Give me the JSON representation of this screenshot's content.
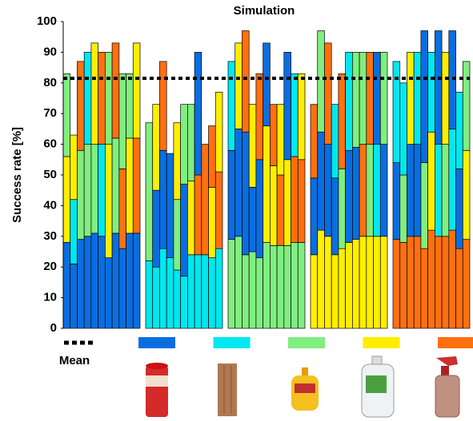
{
  "chart_data": {
    "type": "bar",
    "title": "Simulation",
    "y_label": "Success rate [%]",
    "ylim": [
      0,
      100
    ],
    "yticks": [
      0,
      10,
      20,
      30,
      40,
      50,
      60,
      70,
      80,
      90,
      100
    ],
    "mean": 81.5,
    "mean_label": "Mean",
    "groups": [
      {
        "color": "#0a6ee0",
        "bars": [
          [
            {
              "value": 28,
              "color": "#0a6ee0"
            },
            {
              "value": 28,
              "color": "#ffee00"
            },
            {
              "value": 27,
              "color": "#80ee80"
            }
          ],
          [
            {
              "value": 21,
              "color": "#0a6ee0"
            },
            {
              "value": 21,
              "color": "#00e8f0"
            },
            {
              "value": 21,
              "color": "#ffee00"
            }
          ],
          [
            {
              "value": 29,
              "color": "#0a6ee0"
            },
            {
              "value": 29,
              "color": "#80ee80"
            },
            {
              "value": 29,
              "color": "#ff7010"
            }
          ],
          [
            {
              "value": 30,
              "color": "#0a6ee0"
            },
            {
              "value": 30,
              "color": "#80ee80"
            },
            {
              "value": 30,
              "color": "#00e8f0"
            }
          ],
          [
            {
              "value": 31,
              "color": "#0a6ee0"
            },
            {
              "value": 29,
              "color": "#80ee80"
            },
            {
              "value": 33,
              "color": "#ffee00"
            }
          ],
          [
            {
              "value": 30,
              "color": "#0a6ee0"
            },
            {
              "value": 30,
              "color": "#00e8f0"
            },
            {
              "value": 30,
              "color": "#ff7010"
            }
          ],
          [
            {
              "value": 23,
              "color": "#0a6ee0"
            },
            {
              "value": 37,
              "color": "#ffee00"
            },
            {
              "value": 30,
              "color": "#80ee80"
            }
          ],
          [
            {
              "value": 31,
              "color": "#0a6ee0"
            },
            {
              "value": 31,
              "color": "#80ee80"
            },
            {
              "value": 31,
              "color": "#ff7010"
            }
          ],
          [
            {
              "value": 26,
              "color": "#0a6ee0"
            },
            {
              "value": 26,
              "color": "#ff7010"
            },
            {
              "value": 31,
              "color": "#80ee80"
            }
          ],
          [
            {
              "value": 31,
              "color": "#0a6ee0"
            },
            {
              "value": 31,
              "color": "#ffee00"
            },
            {
              "value": 21,
              "color": "#80ee80"
            }
          ],
          [
            {
              "value": 31,
              "color": "#0a6ee0"
            },
            {
              "value": 31,
              "color": "#ff7010"
            },
            {
              "value": 31,
              "color": "#ffee00"
            }
          ]
        ]
      },
      {
        "color": "#00e8f0",
        "bars": [
          [
            {
              "value": 22,
              "color": "#00e8f0"
            },
            {
              "value": 45,
              "color": "#80ee80"
            }
          ],
          [
            {
              "value": 20,
              "color": "#00e8f0"
            },
            {
              "value": 25,
              "color": "#0a6ee0"
            },
            {
              "value": 28,
              "color": "#ffee00"
            }
          ],
          [
            {
              "value": 26,
              "color": "#00e8f0"
            },
            {
              "value": 32,
              "color": "#0a6ee0"
            },
            {
              "value": 29,
              "color": "#ff7010"
            }
          ],
          [
            {
              "value": 23,
              "color": "#00e8f0"
            },
            {
              "value": 34,
              "color": "#0a6ee0"
            }
          ],
          [
            {
              "value": 19,
              "color": "#00e8f0"
            },
            {
              "value": 23,
              "color": "#80ee80"
            },
            {
              "value": 25,
              "color": "#ffee00"
            }
          ],
          [
            {
              "value": 17,
              "color": "#00e8f0"
            },
            {
              "value": 30,
              "color": "#0a6ee0"
            },
            {
              "value": 26,
              "color": "#80ee80"
            }
          ],
          [
            {
              "value": 24,
              "color": "#00e8f0"
            },
            {
              "value": 24,
              "color": "#ffee00"
            },
            {
              "value": 25,
              "color": "#80ee80"
            }
          ],
          [
            {
              "value": 24,
              "color": "#00e8f0"
            },
            {
              "value": 26,
              "color": "#ff7010"
            },
            {
              "value": 40,
              "color": "#0a6ee0"
            }
          ],
          [
            {
              "value": 24,
              "color": "#00e8f0"
            },
            {
              "value": 36,
              "color": "#ff7010"
            }
          ],
          [
            {
              "value": 23,
              "color": "#00e8f0"
            },
            {
              "value": 23,
              "color": "#ffee00"
            },
            {
              "value": 20,
              "color": "#ff7010"
            }
          ],
          [
            {
              "value": 26,
              "color": "#00e8f0"
            },
            {
              "value": 25,
              "color": "#ff7010"
            },
            {
              "value": 26,
              "color": "#ffee00"
            }
          ]
        ]
      },
      {
        "color": "#80ee80",
        "bars": [
          [
            {
              "value": 29,
              "color": "#80ee80"
            },
            {
              "value": 29,
              "color": "#0a6ee0"
            },
            {
              "value": 29,
              "color": "#00e8f0"
            }
          ],
          [
            {
              "value": 30,
              "color": "#80ee80"
            },
            {
              "value": 35,
              "color": "#0a6ee0"
            },
            {
              "value": 28,
              "color": "#ffee00"
            }
          ],
          [
            {
              "value": 24,
              "color": "#80ee80"
            },
            {
              "value": 40,
              "color": "#0a6ee0"
            },
            {
              "value": 33,
              "color": "#ff7010"
            }
          ],
          [
            {
              "value": 25,
              "color": "#80ee80"
            },
            {
              "value": 21,
              "color": "#0a6ee0"
            },
            {
              "value": 27,
              "color": "#ffee00"
            }
          ],
          [
            {
              "value": 23,
              "color": "#80ee80"
            },
            {
              "value": 32,
              "color": "#0a6ee0"
            },
            {
              "value": 28,
              "color": "#ff7010"
            }
          ],
          [
            {
              "value": 28,
              "color": "#80ee80"
            },
            {
              "value": 38,
              "color": "#ffee00"
            },
            {
              "value": 27,
              "color": "#0a6ee0"
            }
          ],
          [
            {
              "value": 27,
              "color": "#80ee80"
            },
            {
              "value": 26,
              "color": "#ffee00"
            },
            {
              "value": 20,
              "color": "#ff7010"
            }
          ],
          [
            {
              "value": 27,
              "color": "#80ee80"
            },
            {
              "value": 23,
              "color": "#ff7010"
            },
            {
              "value": 23,
              "color": "#ffee00"
            }
          ],
          [
            {
              "value": 27,
              "color": "#80ee80"
            },
            {
              "value": 28,
              "color": "#ffee00"
            },
            {
              "value": 35,
              "color": "#0a6ee0"
            }
          ],
          [
            {
              "value": 28,
              "color": "#80ee80"
            },
            {
              "value": 28,
              "color": "#ff7010"
            },
            {
              "value": 27,
              "color": "#00e8f0"
            }
          ],
          [
            {
              "value": 28,
              "color": "#80ee80"
            },
            {
              "value": 27,
              "color": "#ff7010"
            },
            {
              "value": 28,
              "color": "#ffee00"
            }
          ]
        ]
      },
      {
        "color": "#ffee00",
        "bars": [
          [
            {
              "value": 24,
              "color": "#ffee00"
            },
            {
              "value": 25,
              "color": "#0a6ee0"
            },
            {
              "value": 24,
              "color": "#ff7010"
            }
          ],
          [
            {
              "value": 32,
              "color": "#ffee00"
            },
            {
              "value": 32,
              "color": "#0a6ee0"
            },
            {
              "value": 33,
              "color": "#80ee80"
            }
          ],
          [
            {
              "value": 30,
              "color": "#ffee00"
            },
            {
              "value": 30,
              "color": "#0a6ee0"
            },
            {
              "value": 33,
              "color": "#ff7010"
            }
          ],
          [
            {
              "value": 24,
              "color": "#ffee00"
            },
            {
              "value": 25,
              "color": "#0a6ee0"
            },
            {
              "value": 24,
              "color": "#00e8f0"
            }
          ],
          [
            {
              "value": 26,
              "color": "#ffee00"
            },
            {
              "value": 26,
              "color": "#80ee80"
            },
            {
              "value": 31,
              "color": "#ff7010"
            }
          ],
          [
            {
              "value": 28,
              "color": "#ffee00"
            },
            {
              "value": 30,
              "color": "#0a6ee0"
            },
            {
              "value": 32,
              "color": "#00e8f0"
            }
          ],
          [
            {
              "value": 29,
              "color": "#ffee00"
            },
            {
              "value": 30,
              "color": "#0a6ee0"
            },
            {
              "value": 31,
              "color": "#80ee80"
            }
          ],
          [
            {
              "value": 30,
              "color": "#ffee00"
            },
            {
              "value": 30,
              "color": "#ff7010"
            },
            {
              "value": 30,
              "color": "#80ee80"
            }
          ],
          [
            {
              "value": 30,
              "color": "#ffee00"
            },
            {
              "value": 30,
              "color": "#80ee80"
            },
            {
              "value": 30,
              "color": "#ff7010"
            }
          ],
          [
            {
              "value": 30,
              "color": "#ffee00"
            },
            {
              "value": 30,
              "color": "#00e8f0"
            },
            {
              "value": 30,
              "color": "#0a6ee0"
            }
          ],
          [
            {
              "value": 30,
              "color": "#ffee00"
            },
            {
              "value": 30,
              "color": "#0a6ee0"
            },
            {
              "value": 30,
              "color": "#80ee80"
            }
          ]
        ]
      },
      {
        "color": "#ff7010",
        "bars": [
          [
            {
              "value": 29,
              "color": "#ff7010"
            },
            {
              "value": 25,
              "color": "#0a6ee0"
            },
            {
              "value": 33,
              "color": "#00e8f0"
            }
          ],
          [
            {
              "value": 28,
              "color": "#ff7010"
            },
            {
              "value": 22,
              "color": "#80ee80"
            },
            {
              "value": 30,
              "color": "#00e8f0"
            }
          ],
          [
            {
              "value": 30,
              "color": "#ff7010"
            },
            {
              "value": 30,
              "color": "#0a6ee0"
            },
            {
              "value": 30,
              "color": "#ffee00"
            }
          ],
          [
            {
              "value": 30,
              "color": "#ff7010"
            },
            {
              "value": 30,
              "color": "#0a6ee0"
            },
            {
              "value": 30,
              "color": "#00e8f0"
            }
          ],
          [
            {
              "value": 26,
              "color": "#ff7010"
            },
            {
              "value": 28,
              "color": "#80ee80"
            },
            {
              "value": 43,
              "color": "#0a6ee0"
            }
          ],
          [
            {
              "value": 32,
              "color": "#ff7010"
            },
            {
              "value": 32,
              "color": "#ffee00"
            },
            {
              "value": 26,
              "color": "#00e8f0"
            }
          ],
          [
            {
              "value": 30,
              "color": "#ff7010"
            },
            {
              "value": 30,
              "color": "#00e8f0"
            },
            {
              "value": 37,
              "color": "#0a6ee0"
            }
          ],
          [
            {
              "value": 30,
              "color": "#ff7010"
            },
            {
              "value": 30,
              "color": "#80ee80"
            },
            {
              "value": 30,
              "color": "#ffee00"
            }
          ],
          [
            {
              "value": 32,
              "color": "#ff7010"
            },
            {
              "value": 33,
              "color": "#00e8f0"
            },
            {
              "value": 32,
              "color": "#0a6ee0"
            }
          ],
          [
            {
              "value": 26,
              "color": "#ff7010"
            },
            {
              "value": 26,
              "color": "#0a6ee0"
            },
            {
              "value": 25,
              "color": "#00e8f0"
            }
          ],
          [
            {
              "value": 29,
              "color": "#ff7010"
            },
            {
              "value": 29,
              "color": "#ffee00"
            },
            {
              "value": 29,
              "color": "#80ee80"
            }
          ]
        ]
      }
    ]
  }
}
